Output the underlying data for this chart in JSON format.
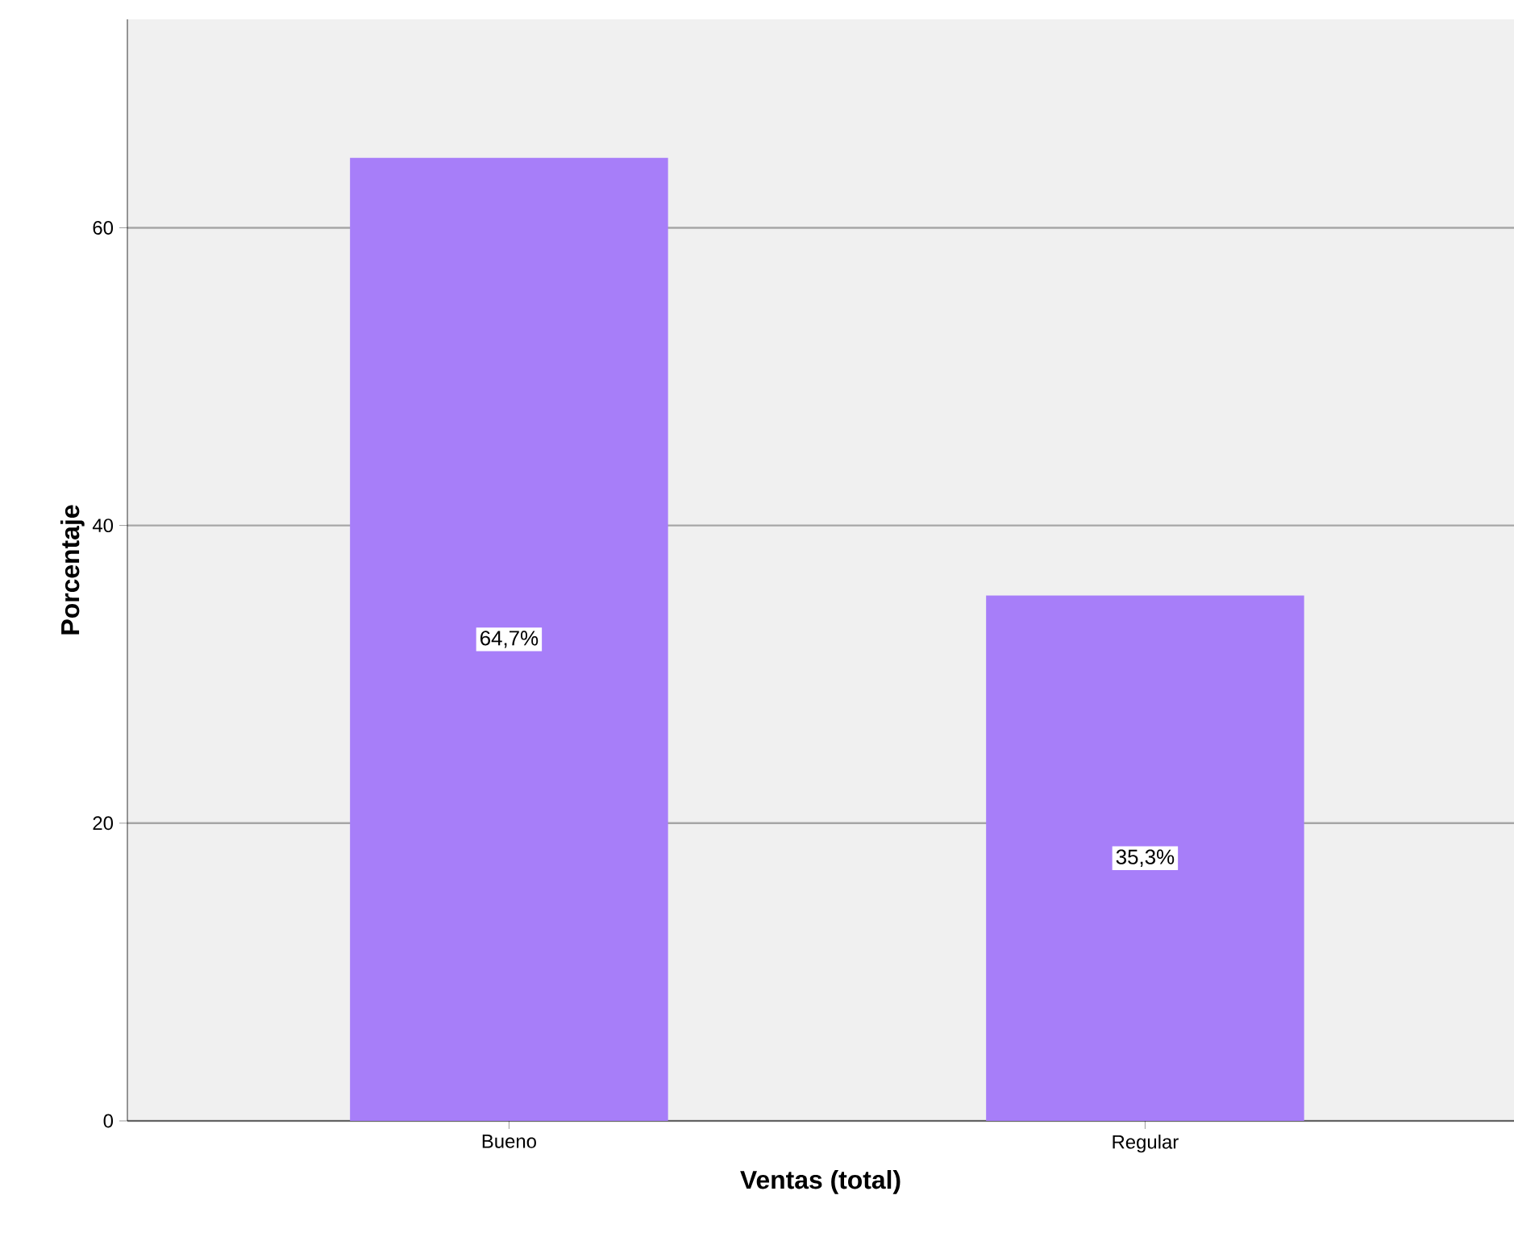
{
  "chart_data": {
    "type": "bar",
    "xlabel": "Ventas (total)",
    "ylabel": "Porcentaje",
    "categories": [
      "Bueno",
      "Regular"
    ],
    "values": [
      64.7,
      35.3
    ],
    "value_labels": [
      "64,7%",
      "35,3%"
    ],
    "color": "#a77ef9",
    "ylim": [
      0,
      74
    ],
    "yticks": [
      0,
      20,
      40,
      60
    ],
    "grid": "y"
  }
}
